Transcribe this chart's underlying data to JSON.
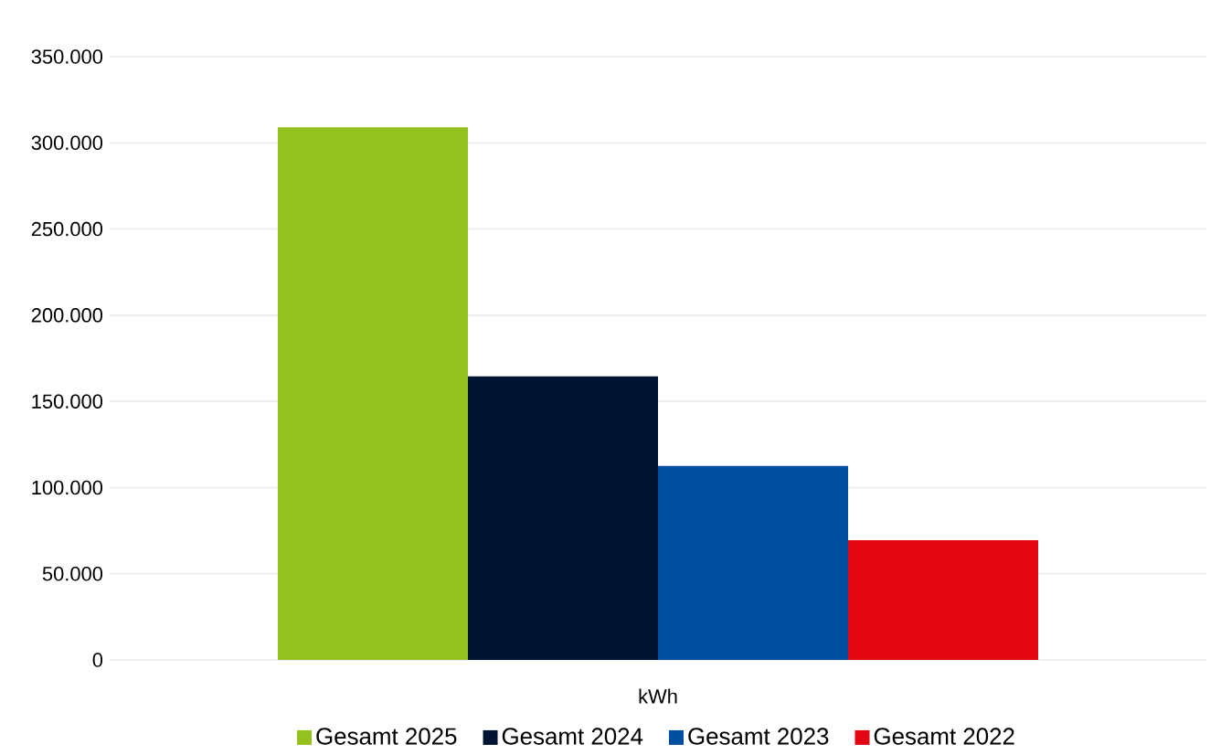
{
  "chart_data": {
    "type": "bar",
    "categories": [
      "kWh"
    ],
    "series": [
      {
        "name": "Gesamt 2025",
        "color": "#95c11f",
        "values": [
          309000
        ]
      },
      {
        "name": "Gesamt 2024",
        "color": "#011533",
        "values": [
          164500
        ]
      },
      {
        "name": "Gesamt 2023",
        "color": "#004fa0",
        "values": [
          112500
        ]
      },
      {
        "name": "Gesamt 2022",
        "color": "#e30613",
        "values": [
          69500
        ]
      }
    ],
    "ylim": [
      0,
      350000
    ],
    "yticks": [
      0,
      {
        "value": 50000,
        "label": "50.000"
      },
      {
        "value": 100000,
        "label": "100.000"
      },
      {
        "value": 150000,
        "label": "150.000"
      },
      {
        "value": 200000,
        "label": "200.000"
      },
      {
        "value": 250000,
        "label": "250.000"
      },
      {
        "value": 300000,
        "label": "300.000"
      },
      {
        "value": 350000,
        "label": "350.000"
      }
    ],
    "grid": "y",
    "legend": "bottom"
  }
}
